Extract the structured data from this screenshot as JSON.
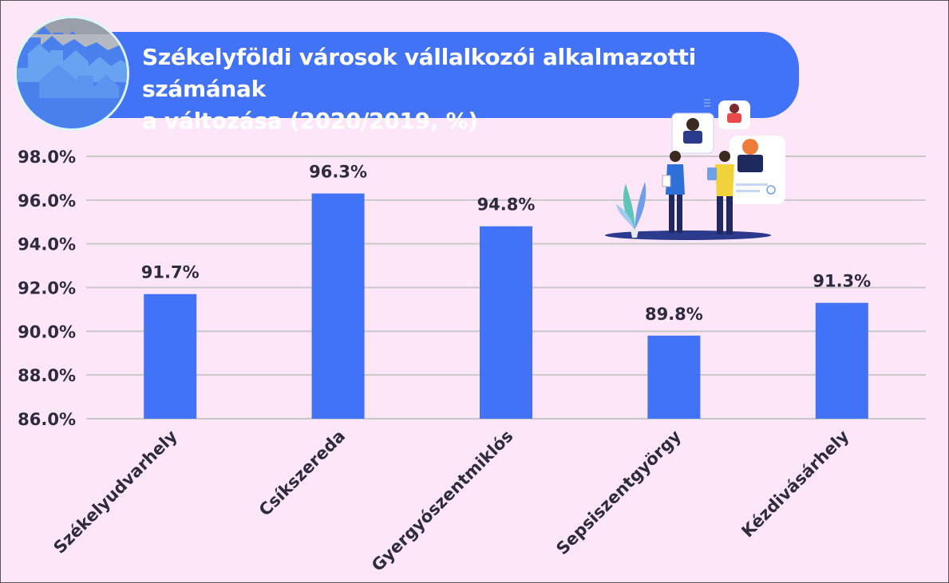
{
  "title_lines": [
    "Székelyföldi városok vállalkozói alkalmazotti számának",
    "a változása (2020/2019, %)"
  ],
  "colors": {
    "bar": "#4272f5",
    "banner": "#4272f5",
    "background": "#fce6f8",
    "grid": "#c8c8c8",
    "text": "#2d2b3d"
  },
  "illustration": {
    "logo": "houses-logo-icon",
    "people": "business-people-hiring-illustration"
  },
  "chart_data": {
    "type": "bar",
    "title": "Székelyföldi városok vállalkozói alkalmazotti számának a változása (2020/2019, %)",
    "categories": [
      "Székelyudvarhely",
      "Csíkszereda",
      "Gyergyószentmiklós",
      "Sepsiszentgyörgy",
      "Kézdivásárhely"
    ],
    "values": [
      91.7,
      96.3,
      94.8,
      89.8,
      91.3
    ],
    "data_labels": [
      "91.7%",
      "96.3%",
      "94.8%",
      "89.8%",
      "91.3%"
    ],
    "ylim": [
      86.0,
      98.0
    ],
    "yticks": [
      86.0,
      88.0,
      90.0,
      92.0,
      94.0,
      96.0,
      98.0
    ],
    "ytick_labels": [
      "86.0%",
      "88.0%",
      "90.0%",
      "92.0%",
      "94.0%",
      "96.0%",
      "98.0%"
    ],
    "xlabel": "",
    "ylabel": "",
    "grid": true,
    "legend": "none"
  }
}
